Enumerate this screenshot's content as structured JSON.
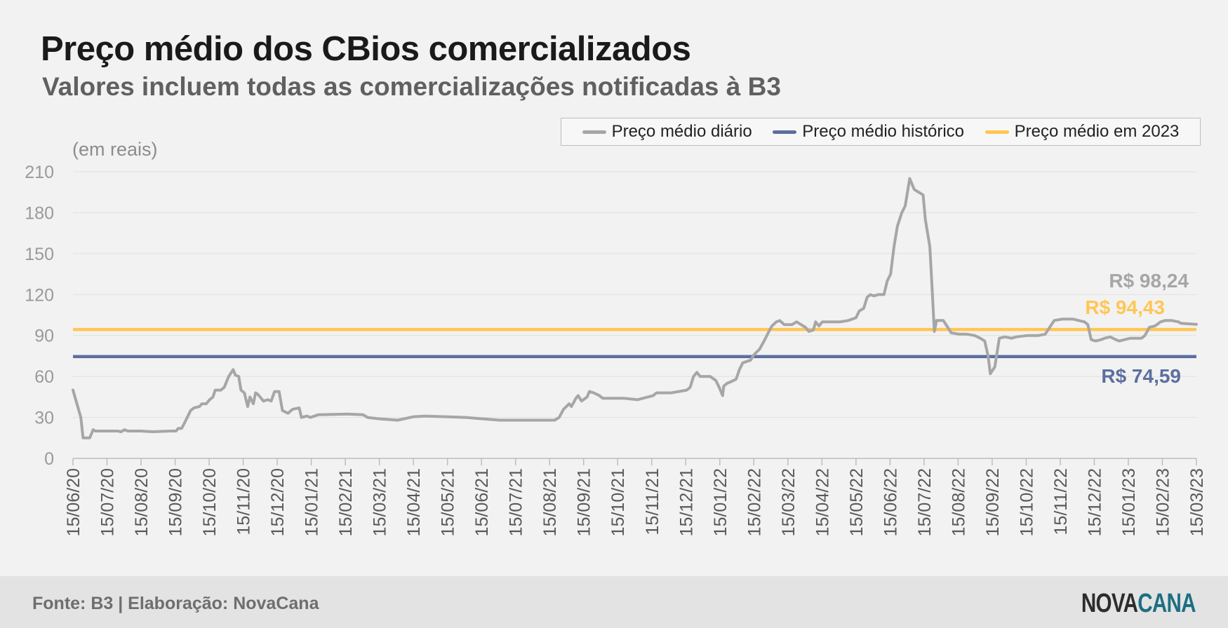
{
  "header": {
    "title": "Preço médio dos CBios comercializados",
    "subtitle": "Valores incluem todas as comercializações notificadas à B3"
  },
  "legend": {
    "items": [
      {
        "label": "Preço médio diário",
        "color": "#a6a6a6"
      },
      {
        "label": "Preço médio histórico",
        "color": "#5b6fa0"
      },
      {
        "label": "Preço médio em 2023",
        "color": "#ffc654"
      }
    ]
  },
  "footer": {
    "source": "Fonte: B3 | Elaboração: NovaCana",
    "logo_part1": "NOVA",
    "logo_part2": "CANA"
  },
  "chart_data": {
    "type": "line",
    "title": "Preço médio dos CBios comercializados",
    "subtitle": "Valores incluem todas as comercializações notificadas à B3",
    "unit_label": "(em reais)",
    "ylim": [
      0,
      210
    ],
    "yticks": [
      0,
      30,
      60,
      90,
      120,
      150,
      180,
      210
    ],
    "x_range": [
      "2020-06-15",
      "2023-03-15"
    ],
    "x_tick_labels": [
      "15/06/20",
      "15/07/20",
      "15/08/20",
      "15/09/20",
      "15/10/20",
      "15/11/20",
      "15/12/20",
      "15/01/21",
      "15/02/21",
      "15/03/21",
      "15/04/21",
      "15/05/21",
      "15/06/21",
      "15/07/21",
      "15/08/21",
      "15/09/21",
      "15/10/21",
      "15/11/21",
      "15/12/21",
      "15/01/22",
      "15/02/22",
      "15/03/22",
      "15/04/22",
      "15/05/22",
      "15/06/22",
      "15/07/22",
      "15/08/22",
      "15/09/22",
      "15/10/22",
      "15/11/22",
      "15/12/22",
      "15/01/23",
      "15/02/23",
      "15/03/23"
    ],
    "grid": "horizontal",
    "legend_position": "top-right",
    "series": [
      {
        "name": "Preço médio diário",
        "color": "#a6a6a6",
        "points": [
          [
            "2020-06-15",
            50
          ],
          [
            "2020-06-22",
            30
          ],
          [
            "2020-06-24",
            15
          ],
          [
            "2020-06-30",
            15
          ],
          [
            "2020-07-03",
            21
          ],
          [
            "2020-07-05",
            20
          ],
          [
            "2020-07-25",
            20
          ],
          [
            "2020-07-28",
            19.5
          ],
          [
            "2020-07-31",
            21
          ],
          [
            "2020-08-03",
            20
          ],
          [
            "2020-08-15",
            20
          ],
          [
            "2020-08-25",
            19.5
          ],
          [
            "2020-09-10",
            20
          ],
          [
            "2020-09-15",
            20
          ],
          [
            "2020-09-17",
            22
          ],
          [
            "2020-09-20",
            22
          ],
          [
            "2020-09-22",
            25
          ],
          [
            "2020-09-25",
            30
          ],
          [
            "2020-09-28",
            35
          ],
          [
            "2020-10-01",
            37
          ],
          [
            "2020-10-06",
            38
          ],
          [
            "2020-10-08",
            40
          ],
          [
            "2020-10-12",
            40
          ],
          [
            "2020-10-15",
            43
          ],
          [
            "2020-10-18",
            45
          ],
          [
            "2020-10-20",
            50
          ],
          [
            "2020-10-25",
            50
          ],
          [
            "2020-10-28",
            52
          ],
          [
            "2020-11-01",
            60
          ],
          [
            "2020-11-05",
            65
          ],
          [
            "2020-11-07",
            61
          ],
          [
            "2020-11-10",
            60
          ],
          [
            "2020-11-12",
            50
          ],
          [
            "2020-11-15",
            48
          ],
          [
            "2020-11-18",
            38
          ],
          [
            "2020-11-20",
            45
          ],
          [
            "2020-11-23",
            40
          ],
          [
            "2020-11-25",
            48
          ],
          [
            "2020-11-27",
            47
          ],
          [
            "2020-12-02",
            42
          ],
          [
            "2020-12-06",
            43
          ],
          [
            "2020-12-09",
            42
          ],
          [
            "2020-12-12",
            49
          ],
          [
            "2020-12-16",
            49
          ],
          [
            "2020-12-19",
            35
          ],
          [
            "2020-12-24",
            33
          ],
          [
            "2020-12-28",
            36
          ],
          [
            "2021-01-03",
            37
          ],
          [
            "2021-01-05",
            30
          ],
          [
            "2021-01-10",
            31
          ],
          [
            "2021-01-13",
            30
          ],
          [
            "2021-01-20",
            32
          ],
          [
            "2021-02-15",
            32.5
          ],
          [
            "2021-03-01",
            32
          ],
          [
            "2021-03-05",
            30
          ],
          [
            "2021-03-15",
            29
          ],
          [
            "2021-04-01",
            28
          ],
          [
            "2021-04-15",
            30.5
          ],
          [
            "2021-04-25",
            31
          ],
          [
            "2021-05-15",
            30.5
          ],
          [
            "2021-06-01",
            30
          ],
          [
            "2021-06-15",
            29
          ],
          [
            "2021-07-01",
            28
          ],
          [
            "2021-08-01",
            28
          ],
          [
            "2021-08-19",
            28
          ],
          [
            "2021-08-23",
            30
          ],
          [
            "2021-08-27",
            36
          ],
          [
            "2021-09-01",
            40
          ],
          [
            "2021-09-03",
            38
          ],
          [
            "2021-09-07",
            44
          ],
          [
            "2021-09-09",
            46
          ],
          [
            "2021-09-12",
            42
          ],
          [
            "2021-09-17",
            45
          ],
          [
            "2021-09-19",
            49
          ],
          [
            "2021-09-23",
            48
          ],
          [
            "2021-09-28",
            46
          ],
          [
            "2021-10-01",
            44
          ],
          [
            "2021-10-15",
            44
          ],
          [
            "2021-10-20",
            44
          ],
          [
            "2021-11-01",
            43
          ],
          [
            "2021-11-15",
            46
          ],
          [
            "2021-11-18",
            48
          ],
          [
            "2021-12-01",
            48
          ],
          [
            "2021-12-15",
            50
          ],
          [
            "2021-12-18",
            52
          ],
          [
            "2021-12-21",
            60
          ],
          [
            "2021-12-24",
            63
          ],
          [
            "2021-12-27",
            60
          ],
          [
            "2022-01-05",
            60
          ],
          [
            "2022-01-10",
            57
          ],
          [
            "2022-01-13",
            52
          ],
          [
            "2022-01-16",
            46
          ],
          [
            "2022-01-17",
            53
          ],
          [
            "2022-01-20",
            55
          ],
          [
            "2022-01-23",
            56
          ],
          [
            "2022-01-28",
            58
          ],
          [
            "2022-01-31",
            65
          ],
          [
            "2022-02-03",
            70
          ],
          [
            "2022-02-10",
            72
          ],
          [
            "2022-02-13",
            76
          ],
          [
            "2022-02-18",
            80
          ],
          [
            "2022-02-22",
            86
          ],
          [
            "2022-02-27",
            94
          ],
          [
            "2022-03-01",
            97
          ],
          [
            "2022-03-05",
            100
          ],
          [
            "2022-03-08",
            101
          ],
          [
            "2022-03-12",
            98
          ],
          [
            "2022-03-19",
            98
          ],
          [
            "2022-03-23",
            100
          ],
          [
            "2022-03-27",
            98
          ],
          [
            "2022-03-31",
            96
          ],
          [
            "2022-04-03",
            93
          ],
          [
            "2022-04-07",
            94
          ],
          [
            "2022-04-09",
            100
          ],
          [
            "2022-04-12",
            97
          ],
          [
            "2022-04-15",
            100
          ],
          [
            "2022-04-25",
            100
          ],
          [
            "2022-05-01",
            100
          ],
          [
            "2022-05-08",
            101
          ],
          [
            "2022-05-15",
            103
          ],
          [
            "2022-05-18",
            108
          ],
          [
            "2022-05-22",
            110
          ],
          [
            "2022-05-25",
            118
          ],
          [
            "2022-05-28",
            120
          ],
          [
            "2022-05-31",
            119
          ],
          [
            "2022-06-04",
            120
          ],
          [
            "2022-06-09",
            120
          ],
          [
            "2022-06-12",
            130
          ],
          [
            "2022-06-15",
            135
          ],
          [
            "2022-06-18",
            155
          ],
          [
            "2022-06-21",
            170
          ],
          [
            "2022-06-25",
            180
          ],
          [
            "2022-06-28",
            185
          ],
          [
            "2022-07-02",
            205
          ],
          [
            "2022-07-06",
            197
          ],
          [
            "2022-07-10",
            195
          ],
          [
            "2022-07-14",
            193
          ],
          [
            "2022-07-16",
            175
          ],
          [
            "2022-07-20",
            155
          ],
          [
            "2022-07-22",
            125
          ],
          [
            "2022-07-24",
            93
          ],
          [
            "2022-07-26",
            101
          ],
          [
            "2022-08-01",
            101
          ],
          [
            "2022-08-05",
            96
          ],
          [
            "2022-08-08",
            92
          ],
          [
            "2022-08-15",
            91
          ],
          [
            "2022-08-22",
            91
          ],
          [
            "2022-08-29",
            90
          ],
          [
            "2022-09-03",
            88
          ],
          [
            "2022-09-07",
            86
          ],
          [
            "2022-09-10",
            75
          ],
          [
            "2022-09-12",
            62
          ],
          [
            "2022-09-16",
            67
          ],
          [
            "2022-09-20",
            88
          ],
          [
            "2022-09-25",
            89
          ],
          [
            "2022-10-01",
            88
          ],
          [
            "2022-10-05",
            89
          ],
          [
            "2022-10-15",
            90
          ],
          [
            "2022-10-25",
            90
          ],
          [
            "2022-10-31",
            91
          ],
          [
            "2022-11-04",
            96
          ],
          [
            "2022-11-08",
            101
          ],
          [
            "2022-11-15",
            102
          ],
          [
            "2022-11-25",
            102
          ],
          [
            "2022-11-30",
            101
          ],
          [
            "2022-12-05",
            100
          ],
          [
            "2022-12-08",
            98
          ],
          [
            "2022-12-11",
            87
          ],
          [
            "2022-12-15",
            86
          ],
          [
            "2022-12-20",
            87
          ],
          [
            "2022-12-23",
            88
          ],
          [
            "2022-12-28",
            89
          ],
          [
            "2023-01-02",
            87
          ],
          [
            "2023-01-05",
            86
          ],
          [
            "2023-01-10",
            87
          ],
          [
            "2023-01-15",
            88
          ],
          [
            "2023-01-25",
            88
          ],
          [
            "2023-01-28",
            90
          ],
          [
            "2023-02-01",
            96
          ],
          [
            "2023-02-06",
            97
          ],
          [
            "2023-02-11",
            100
          ],
          [
            "2023-02-15",
            101
          ],
          [
            "2023-02-21",
            101
          ],
          [
            "2023-02-27",
            100
          ],
          [
            "2023-03-01",
            99
          ],
          [
            "2023-03-15",
            98.24
          ]
        ]
      },
      {
        "name": "Preço médio histórico",
        "color": "#5b6fa0",
        "value": 74.59,
        "label": "R$ 74,59"
      },
      {
        "name": "Preço médio em 2023",
        "color": "#ffc654",
        "value": 94.43,
        "label": "R$ 94,43"
      }
    ],
    "annotations": [
      {
        "text": "R$ 98,24",
        "color": "#a6a6a6"
      },
      {
        "text": "R$ 94,43",
        "color": "#ffc654"
      },
      {
        "text": "R$ 74,59",
        "color": "#5b6fa0"
      }
    ]
  }
}
